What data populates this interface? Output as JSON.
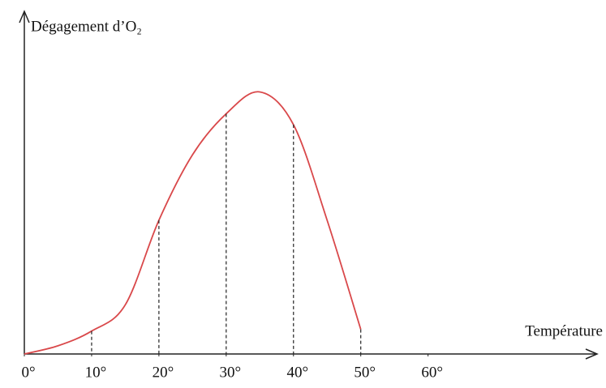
{
  "chart_data": {
    "type": "line",
    "y_label": "Dégagement d’O₂",
    "x_label": "Température",
    "x": [
      0,
      5,
      10,
      15,
      20,
      25,
      30,
      35,
      40,
      45,
      50
    ],
    "series": [
      {
        "color": "#d9484a",
        "values": [
          0,
          3,
          8.4,
          18,
          49,
          73,
          88,
          96,
          84,
          49,
          9
        ]
      }
    ],
    "xlim": [
      0,
      85
    ],
    "ylim": [
      0,
      100
    ],
    "xticks": [
      {
        "value": 0,
        "label": "0°"
      },
      {
        "value": 10,
        "label": "10°"
      },
      {
        "value": 20,
        "label": "20°"
      },
      {
        "value": 30,
        "label": "30°"
      },
      {
        "value": 40,
        "label": "40°"
      },
      {
        "value": 50,
        "label": "50°"
      },
      {
        "value": 60,
        "label": "60°"
      }
    ],
    "drop_lines": [
      10,
      20,
      30,
      40,
      50
    ]
  }
}
